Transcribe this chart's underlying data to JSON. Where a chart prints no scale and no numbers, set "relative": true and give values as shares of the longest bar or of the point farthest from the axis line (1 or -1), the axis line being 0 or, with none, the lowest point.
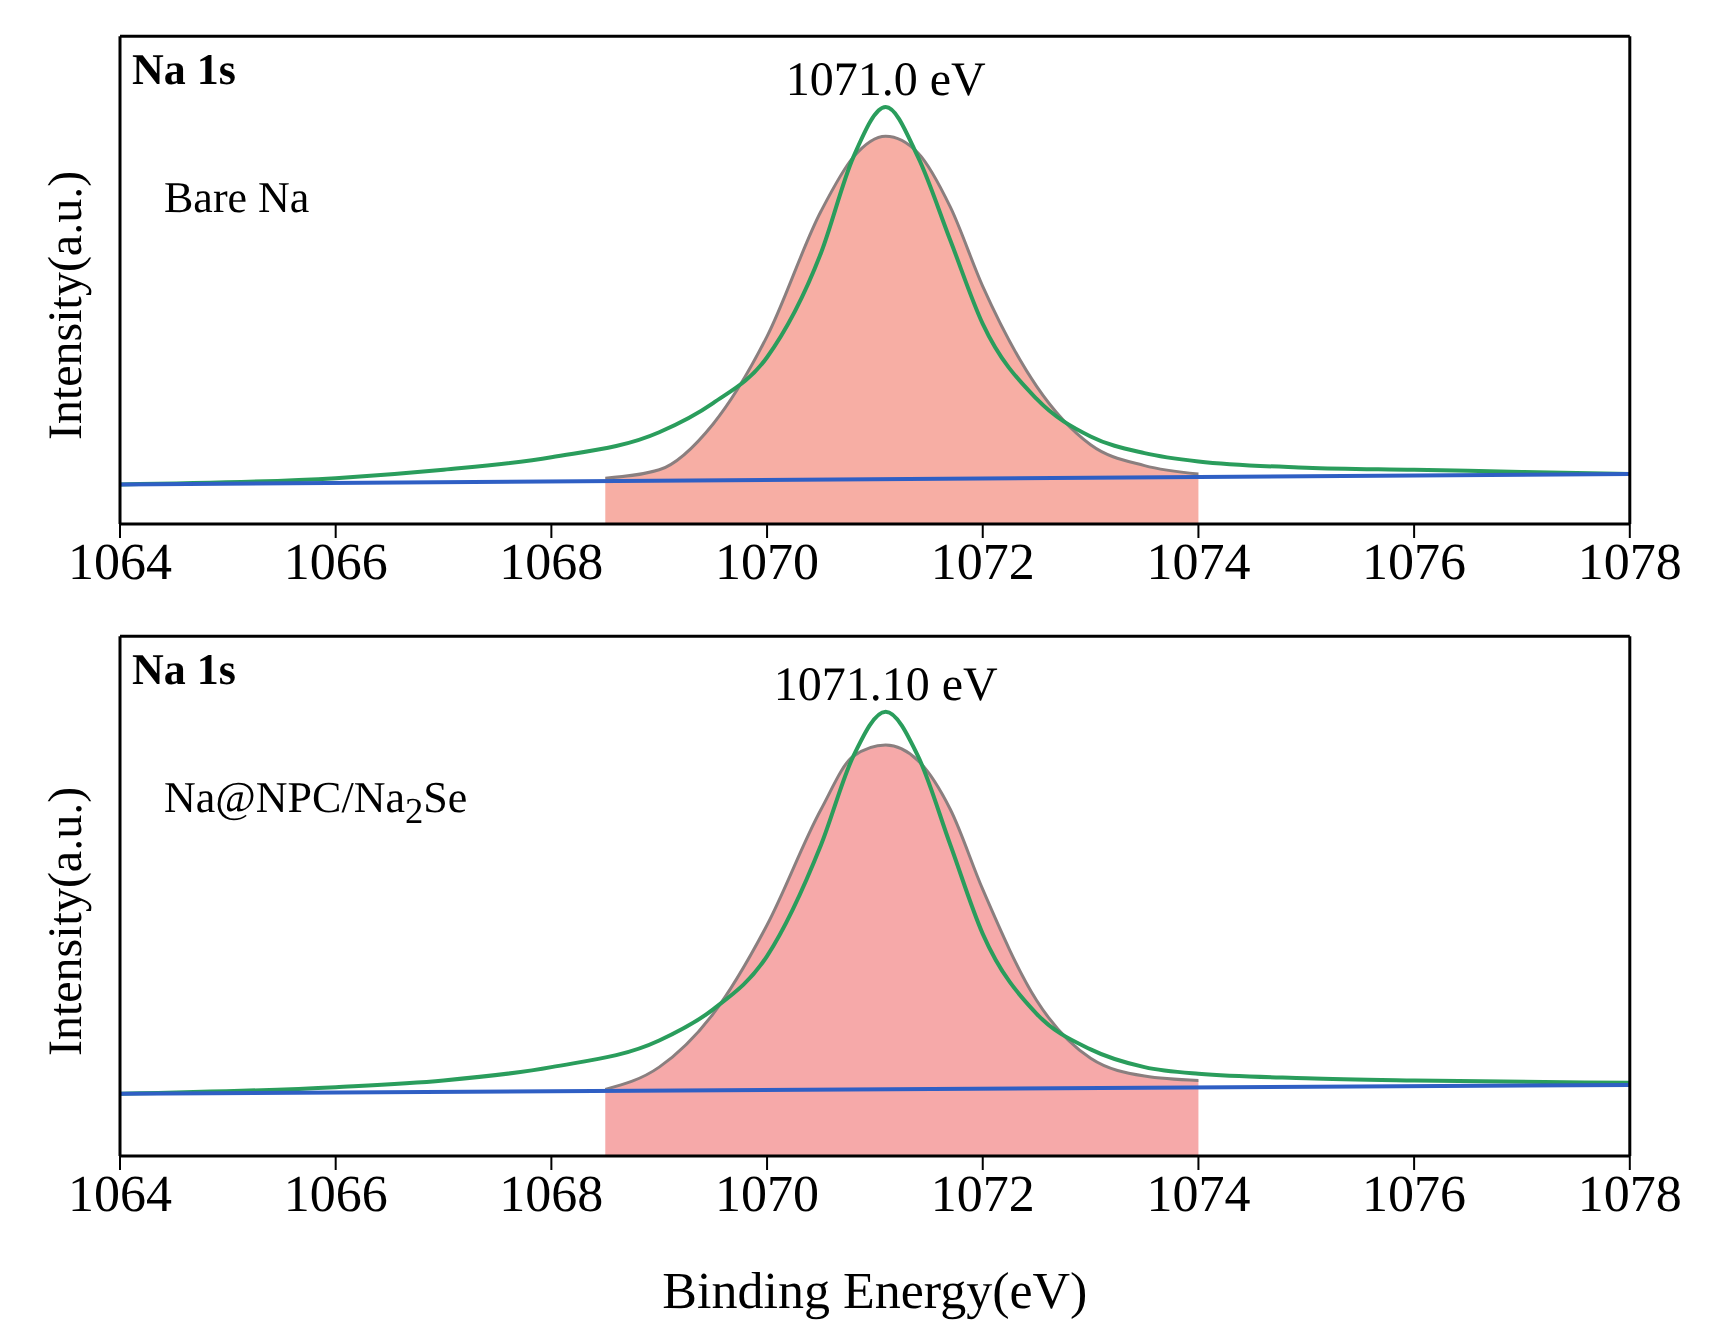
{
  "chart_data": [
    {
      "type": "line",
      "title": "Na 1s",
      "ylabel": "Intensity(a.u.)",
      "relative": true,
      "xlim": [
        1064,
        1078
      ],
      "xticks": [
        1064,
        1066,
        1068,
        1070,
        1072,
        1074,
        1076,
        1078
      ],
      "tick_labels": "x",
      "annotations": [
        "Bare Na",
        {
          "text": "1071.0 eV",
          "x": 1071.1,
          "y": 1
        }
      ],
      "series": [
        {
          "type": "area",
          "color": "#f6a59a",
          "x": [
            1068.5,
            1069,
            1069.5,
            1070,
            1070.5,
            1070.8,
            1071.1,
            1071.4,
            1071.7,
            1072,
            1072.5,
            1073,
            1073.5,
            1074
          ],
          "values": [
            0.11,
            0.13,
            0.24,
            0.45,
            0.75,
            0.88,
            0.93,
            0.89,
            0.76,
            0.57,
            0.33,
            0.19,
            0.14,
            0.12
          ]
        },
        {
          "color": "#2a9d5c",
          "x": [
            1064,
            1066,
            1067,
            1068,
            1069,
            1069.5,
            1070,
            1070.5,
            1070.8,
            1071.1,
            1071.4,
            1071.7,
            1072,
            1072.5,
            1073,
            1073.5,
            1074,
            1075,
            1076,
            1077,
            1078
          ],
          "values": [
            0.095,
            0.11,
            0.13,
            0.16,
            0.22,
            0.29,
            0.4,
            0.65,
            0.88,
            1,
            0.88,
            0.68,
            0.48,
            0.3,
            0.21,
            0.17,
            0.15,
            0.135,
            0.13,
            0.125,
            0.12
          ]
        },
        {
          "color": "#2f5fc4",
          "x": [
            1064,
            1078
          ],
          "values": [
            0.095,
            0.12
          ]
        }
      ]
    },
    {
      "type": "line",
      "title": "Na 1s",
      "xlabel": "Binding Energy(eV)",
      "ylabel": "Intensity(a.u.)",
      "relative": true,
      "xlim": [
        1064,
        1078
      ],
      "xticks": [
        1064,
        1066,
        1068,
        1070,
        1072,
        1074,
        1076,
        1078
      ],
      "tick_labels": "x",
      "annotations": [
        "Na@NPC/Na$_{2}$Se",
        {
          "text": "1071.10 eV",
          "x": 1071.1,
          "y": 1
        }
      ],
      "series": [
        {
          "type": "area",
          "color": "#f5a0a0",
          "x": [
            1068.5,
            1069,
            1069.5,
            1070,
            1070.5,
            1070.8,
            1071.1,
            1071.4,
            1071.7,
            1072,
            1072.5,
            1073,
            1073.5,
            1074
          ],
          "values": [
            0.15,
            0.2,
            0.32,
            0.52,
            0.78,
            0.9,
            0.925,
            0.89,
            0.78,
            0.6,
            0.35,
            0.22,
            0.18,
            0.17
          ]
        },
        {
          "color": "#2a9d5c",
          "x": [
            1064,
            1066,
            1067,
            1068,
            1069,
            1069.5,
            1070,
            1070.5,
            1070.8,
            1071.1,
            1071.4,
            1071.7,
            1072,
            1072.5,
            1073,
            1073.5,
            1074,
            1075,
            1076,
            1078
          ],
          "values": [
            0.14,
            0.155,
            0.17,
            0.2,
            0.26,
            0.33,
            0.45,
            0.7,
            0.9,
            1,
            0.9,
            0.7,
            0.5,
            0.32,
            0.24,
            0.2,
            0.185,
            0.175,
            0.17,
            0.165
          ]
        },
        {
          "color": "#2f5fc4",
          "x": [
            1064,
            1078
          ],
          "values": [
            0.14,
            0.16
          ]
        }
      ]
    }
  ]
}
